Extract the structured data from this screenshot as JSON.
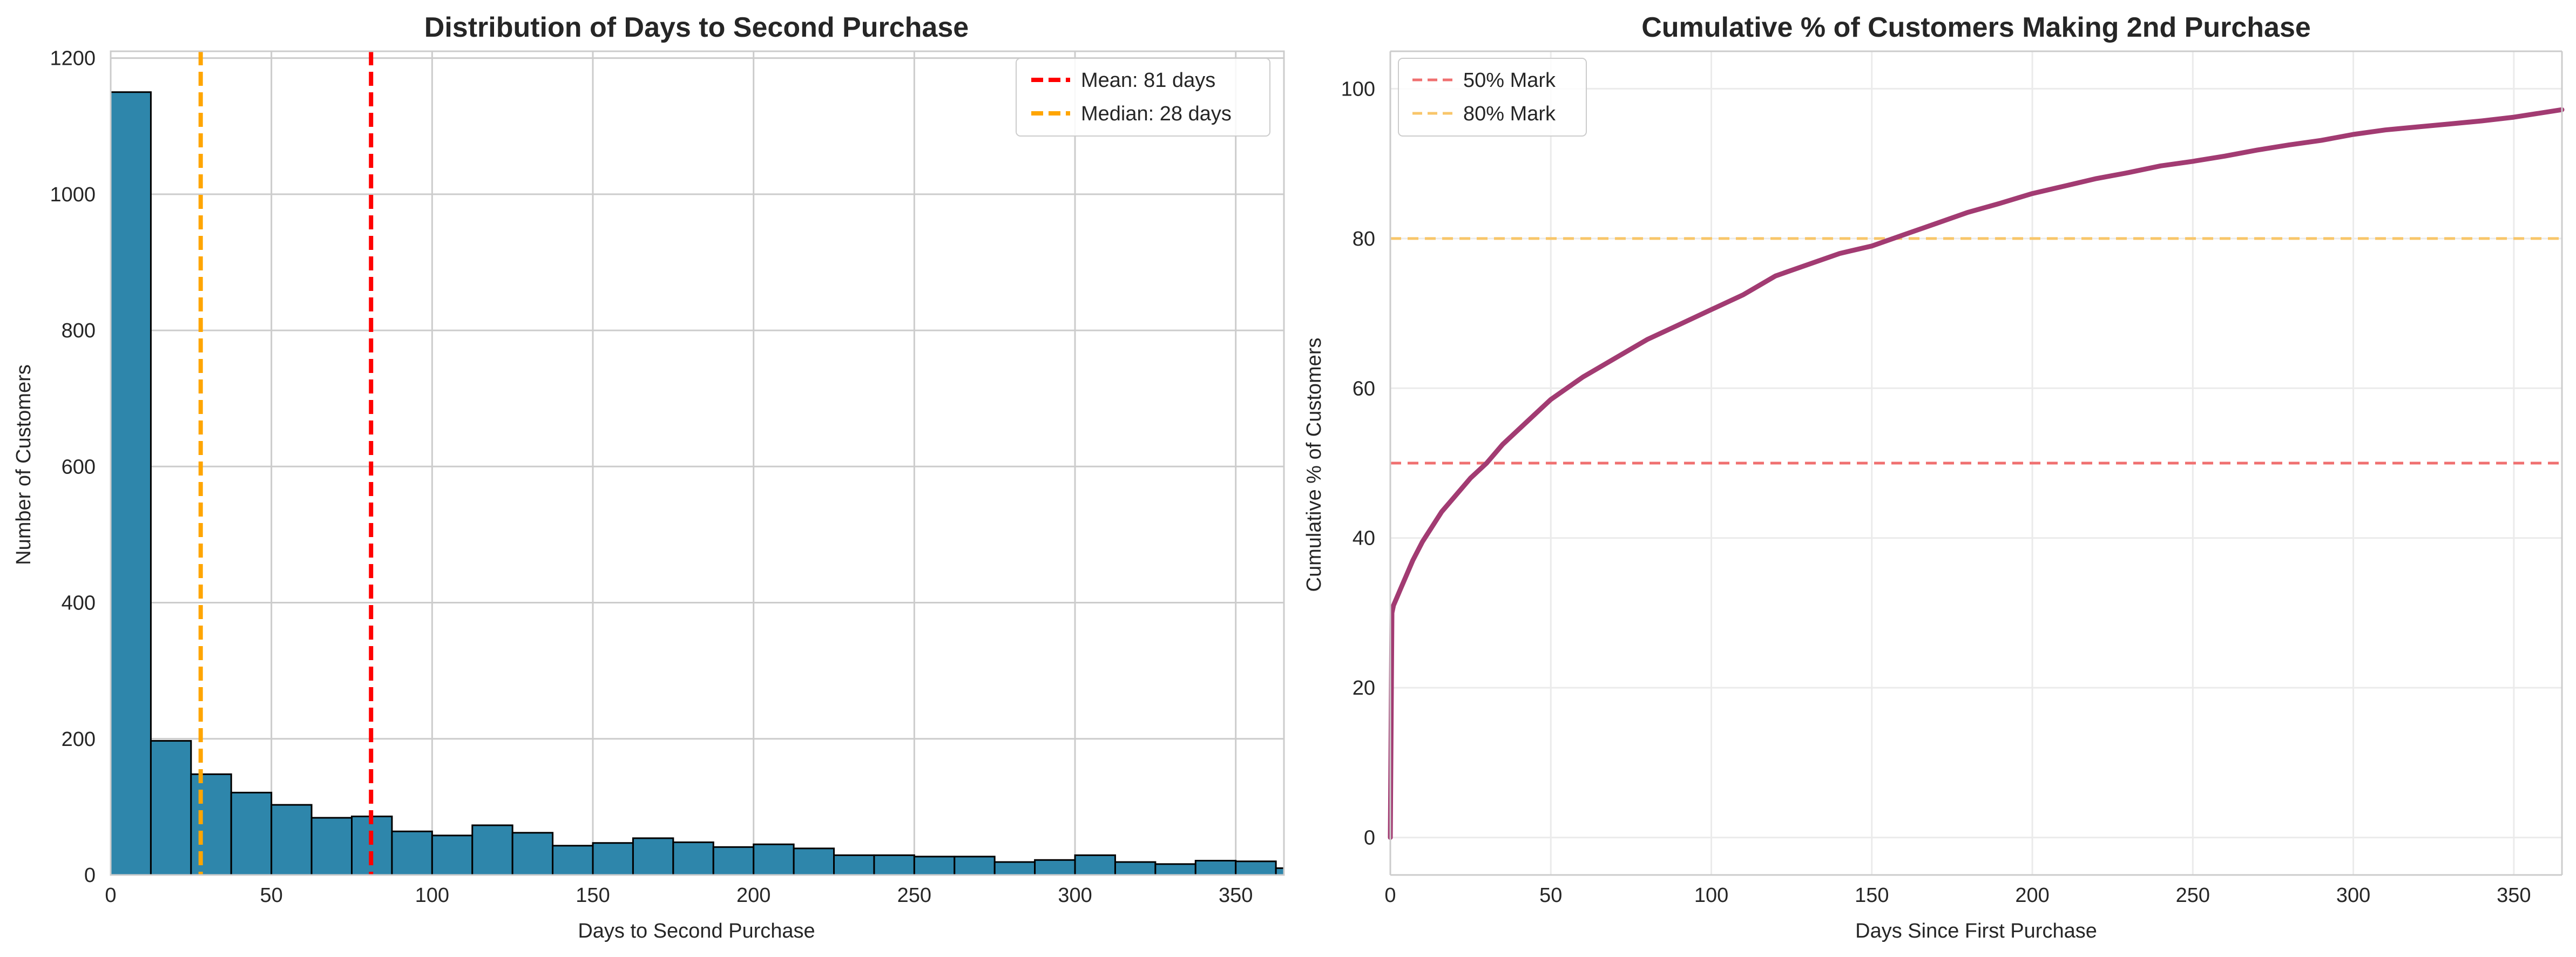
{
  "chart_data": [
    {
      "type": "bar",
      "title": "Distribution of Days to Second Purchase",
      "xlabel": "Days to Second Purchase",
      "ylabel": "Number of Customers",
      "xlim": [
        0,
        365
      ],
      "ylim": [
        0,
        1210
      ],
      "xticks": [
        "0",
        "50",
        "100",
        "150",
        "200",
        "250",
        "300",
        "350"
      ],
      "yticks": [
        "0",
        "200",
        "400",
        "600",
        "800",
        "1000",
        "1200"
      ],
      "bin_width": 12.5,
      "bin_edges_start": 0,
      "values": [
        1150,
        197,
        148,
        121,
        103,
        84,
        86,
        64,
        58,
        73,
        62,
        43,
        47,
        54,
        48,
        41,
        45,
        39,
        29,
        29,
        27,
        27,
        19,
        22,
        29,
        19,
        16,
        21,
        20,
        10
      ],
      "bar_color": "#2e86ab",
      "edge_color": "#000000",
      "grid": true,
      "legend_position": "top-right",
      "reference_lines": [
        {
          "name": "Mean: 81 days",
          "x": 81,
          "color": "#ff0000",
          "style": "dashed"
        },
        {
          "name": "Median: 28 days",
          "x": 28,
          "color": "#ffa500",
          "style": "dashed"
        }
      ]
    },
    {
      "type": "line",
      "title": "Cumulative % of Customers Making 2nd Purchase",
      "xlabel": "Days Since First Purchase",
      "ylabel": "Cumulative % of Customers",
      "xlim": [
        0,
        365
      ],
      "ylim": [
        -5,
        105
      ],
      "xticks": [
        "0",
        "50",
        "100",
        "150",
        "200",
        "250",
        "300",
        "350"
      ],
      "yticks": [
        "0",
        "20",
        "40",
        "60",
        "80",
        "100"
      ],
      "line_color": "#a23b72",
      "grid": true,
      "legend_position": "top-left",
      "x": [
        0,
        0.5,
        1,
        2,
        3,
        5,
        7,
        10,
        13,
        16,
        20,
        25,
        30,
        35,
        40,
        45,
        50,
        60,
        70,
        80,
        90,
        100,
        110,
        120,
        130,
        140,
        150,
        160,
        170,
        180,
        190,
        200,
        210,
        220,
        230,
        240,
        250,
        260,
        270,
        280,
        290,
        300,
        310,
        320,
        330,
        340,
        350,
        365
      ],
      "y": [
        0,
        30,
        31,
        32,
        33,
        35,
        37,
        39.5,
        41.5,
        43.5,
        45.5,
        48,
        50,
        52.5,
        54.5,
        56.5,
        58.5,
        61.5,
        64,
        66.5,
        68.5,
        70.5,
        72.5,
        75,
        76.5,
        78,
        79,
        80.5,
        82,
        83.5,
        84.7,
        86,
        87,
        88,
        88.8,
        89.7,
        90.3,
        91,
        91.8,
        92.5,
        93.1,
        93.9,
        94.5,
        94.9,
        95.3,
        95.7,
        96.2,
        97.2
      ],
      "reference_lines": [
        {
          "name": "50% Mark",
          "y": 50,
          "color": "#f07070",
          "style": "dashed"
        },
        {
          "name": "80% Mark",
          "y": 80,
          "color": "#f8c66a",
          "style": "dashed"
        }
      ]
    }
  ]
}
